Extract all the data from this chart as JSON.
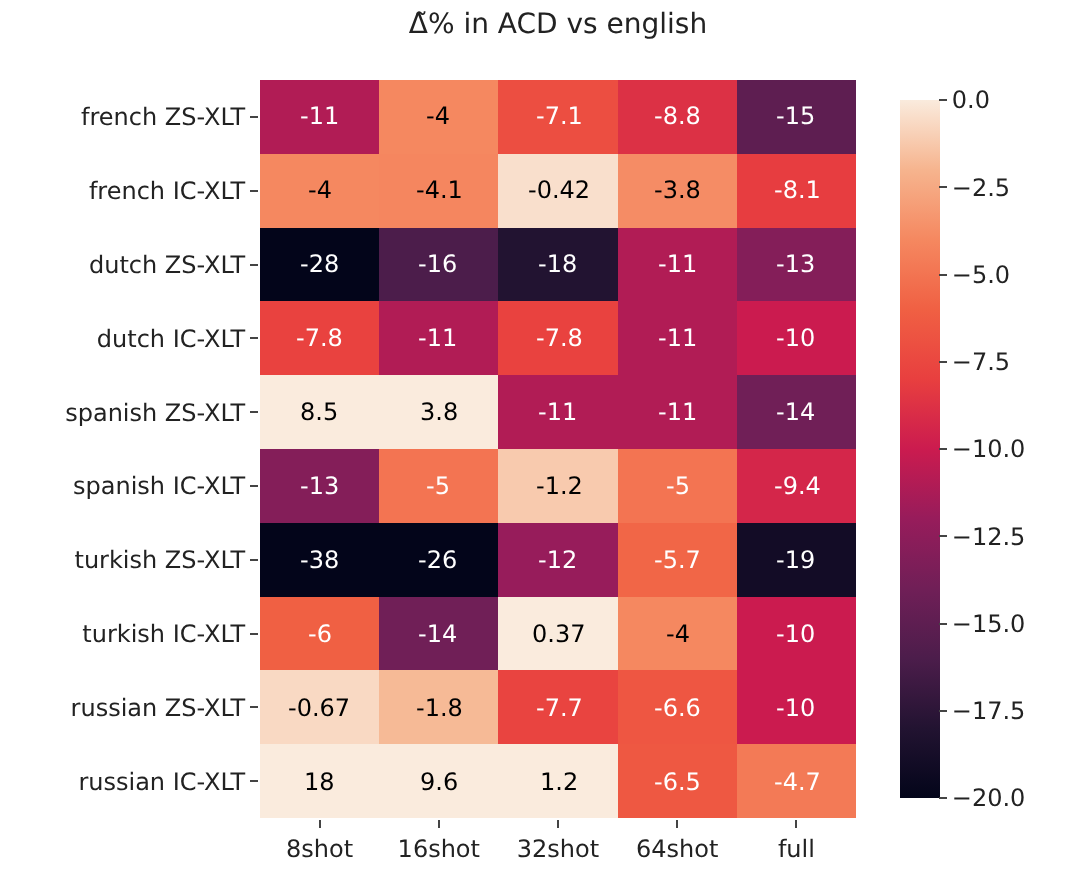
{
  "chart_data": {
    "type": "heatmap",
    "title": "Δ̃% in ACD vs english",
    "categories": [
      "8shot",
      "16shot",
      "32shot",
      "64shot",
      "full"
    ],
    "y_categories": [
      "french ZS-XLT",
      "french IC-XLT",
      "dutch ZS-XLT",
      "dutch IC-XLT",
      "spanish ZS-XLT",
      "spanish IC-XLT",
      "turkish ZS-XLT",
      "turkish IC-XLT",
      "russian ZS-XLT",
      "russian IC-XLT"
    ],
    "cells": [
      [
        -11,
        -4,
        -7.1,
        -8.8,
        -15
      ],
      [
        -4,
        -4.1,
        -0.42,
        -3.8,
        -8.1
      ],
      [
        -28,
        -16,
        -18,
        -11,
        -13
      ],
      [
        -7.8,
        -11,
        -7.8,
        -11,
        -10
      ],
      [
        8.5,
        3.8,
        -11,
        -11,
        -14
      ],
      [
        -13,
        -5,
        -1.2,
        -5,
        -9.4
      ],
      [
        -38,
        -26,
        -12,
        -5.7,
        -19
      ],
      [
        -6,
        -14,
        0.37,
        -4,
        -10
      ],
      [
        -0.67,
        -1.8,
        -7.7,
        -6.6,
        -10
      ],
      [
        18,
        9.6,
        1.2,
        -6.5,
        -4.7
      ]
    ],
    "data_labels": true,
    "clim": [
      -20,
      0
    ],
    "cticks": [
      {
        "value": 0,
        "label": "0.0"
      },
      {
        "value": -2.5,
        "label": "−2.5"
      },
      {
        "value": -5,
        "label": "−5.0"
      },
      {
        "value": -7.5,
        "label": "−7.5"
      },
      {
        "value": -10,
        "label": "−10.0"
      },
      {
        "value": -12.5,
        "label": "−12.5"
      },
      {
        "value": -15,
        "label": "−15.0"
      },
      {
        "value": -17.5,
        "label": "−17.5"
      },
      {
        "value": -20,
        "label": "−20.0"
      }
    ]
  }
}
